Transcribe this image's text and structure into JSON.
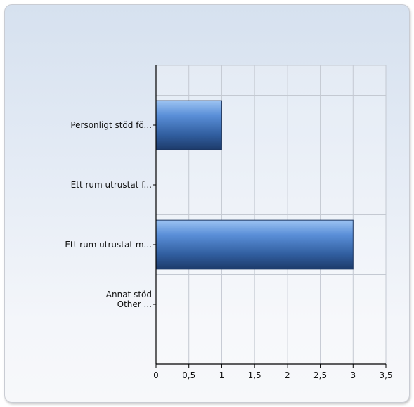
{
  "chart_data": {
    "type": "bar",
    "orientation": "horizontal",
    "categories": [
      [
        "Personligt stöd fö..."
      ],
      [
        "Ett rum utrustat f..."
      ],
      [
        "Ett rum utrustat m..."
      ],
      [
        "Annat stöd",
        "Other ..."
      ]
    ],
    "values": [
      1,
      0,
      3,
      0
    ],
    "xlim": [
      0,
      3.5
    ],
    "x_ticks": [
      "0",
      "0,5",
      "1",
      "1,5",
      "2",
      "2,5",
      "3",
      "3,5"
    ],
    "grid": true,
    "bar_color": "#5a8fd8"
  }
}
